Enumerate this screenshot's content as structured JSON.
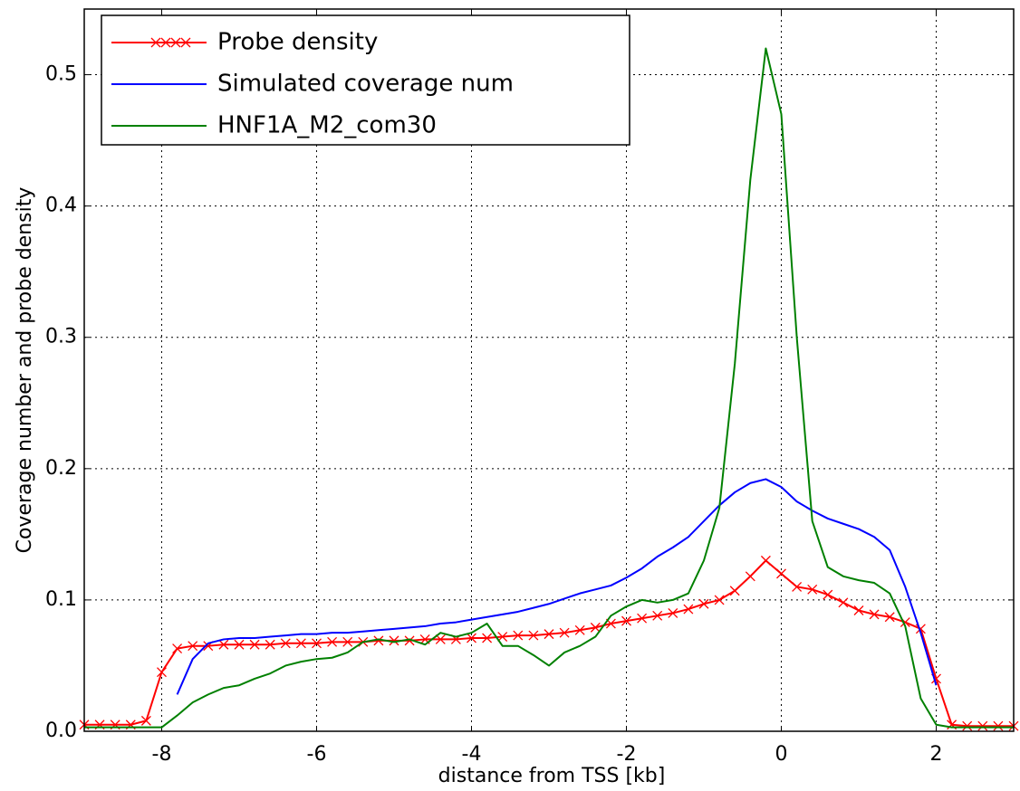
{
  "chart_data": {
    "type": "line",
    "xlabel": "distance from TSS [kb]",
    "ylabel": "Coverage number and probe density",
    "x": [
      -9,
      -8.8,
      -8.6,
      -8.4,
      -8.2,
      -8,
      -7.8,
      -7.6,
      -7.4,
      -7.2,
      -7,
      -6.8,
      -6.6,
      -6.4,
      -6.2,
      -6,
      -5.8,
      -5.6,
      -5.4,
      -5.2,
      -5,
      -4.8,
      -4.6,
      -4.4,
      -4.2,
      -4,
      -3.8,
      -3.6,
      -3.4,
      -3.2,
      -3,
      -2.8,
      -2.6,
      -2.4,
      -2.2,
      -2,
      -1.8,
      -1.6,
      -1.4,
      -1.2,
      -1,
      -0.8,
      -0.6,
      -0.4,
      -0.2,
      0,
      0.2,
      0.4,
      0.6,
      0.8,
      1,
      1.2,
      1.4,
      1.6,
      1.8,
      2,
      2.2,
      2.4,
      2.6,
      2.8,
      3
    ],
    "series": [
      {
        "name": "Probe density",
        "color": "#ff0000",
        "marker": "x",
        "values": [
          0.005,
          0.005,
          0.005,
          0.005,
          0.008,
          0.045,
          0.063,
          0.065,
          0.065,
          0.066,
          0.066,
          0.066,
          0.066,
          0.067,
          0.067,
          0.067,
          0.068,
          0.068,
          0.068,
          0.069,
          0.069,
          0.069,
          0.07,
          0.07,
          0.07,
          0.071,
          0.071,
          0.072,
          0.073,
          0.073,
          0.074,
          0.075,
          0.077,
          0.079,
          0.082,
          0.084,
          0.086,
          0.088,
          0.09,
          0.093,
          0.097,
          0.1,
          0.107,
          0.118,
          0.13,
          0.12,
          0.11,
          0.108,
          0.104,
          0.098,
          0.092,
          0.089,
          0.087,
          0.083,
          0.078,
          0.04,
          0.005,
          0.004,
          0.004,
          0.004,
          0.004
        ]
      },
      {
        "name": "Simulated coverage num",
        "color": "#0000ff",
        "values": [
          null,
          null,
          null,
          null,
          null,
          null,
          0.028,
          0.055,
          0.067,
          0.07,
          0.071,
          0.071,
          0.072,
          0.073,
          0.074,
          0.074,
          0.075,
          0.075,
          0.076,
          0.077,
          0.078,
          0.079,
          0.08,
          0.082,
          0.083,
          0.085,
          0.087,
          0.089,
          0.091,
          0.094,
          0.097,
          0.101,
          0.105,
          0.108,
          0.111,
          0.117,
          0.124,
          0.133,
          0.14,
          0.148,
          0.16,
          0.172,
          0.182,
          0.189,
          0.192,
          0.186,
          0.175,
          0.168,
          0.162,
          0.158,
          0.154,
          0.148,
          0.138,
          0.11,
          0.075,
          0.035,
          null,
          null,
          null,
          null,
          null
        ]
      },
      {
        "name": "HNF1A_M2_com30",
        "color": "#008000",
        "values": [
          0.003,
          0.003,
          0.003,
          0.003,
          0.003,
          0.003,
          0.012,
          0.022,
          0.028,
          0.033,
          0.035,
          0.04,
          0.044,
          0.05,
          0.053,
          0.055,
          0.056,
          0.06,
          0.068,
          0.07,
          0.068,
          0.07,
          0.066,
          0.075,
          0.072,
          0.075,
          0.082,
          0.065,
          0.065,
          0.058,
          0.05,
          0.06,
          0.065,
          0.072,
          0.088,
          0.095,
          0.1,
          0.098,
          0.1,
          0.105,
          0.13,
          0.17,
          0.28,
          0.42,
          0.52,
          0.47,
          0.3,
          0.16,
          0.125,
          0.118,
          0.115,
          0.113,
          0.105,
          0.08,
          0.025,
          0.005,
          0.003,
          0.003,
          0.003,
          0.003,
          0.003
        ]
      }
    ],
    "xlim": [
      -9,
      3
    ],
    "xticks": [
      -8,
      -6,
      -4,
      -2,
      0,
      2
    ],
    "ylim": [
      0,
      0.55
    ],
    "yticks": [
      {
        "value": 0,
        "label": "0.0"
      },
      0.1,
      0.2,
      0.3,
      0.4,
      0.5
    ],
    "grid": true,
    "legend": "upper left"
  }
}
